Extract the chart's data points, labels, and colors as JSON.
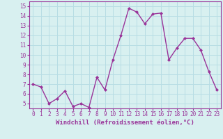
{
  "x": [
    0,
    1,
    2,
    3,
    4,
    5,
    6,
    7,
    8,
    9,
    10,
    11,
    12,
    13,
    14,
    15,
    16,
    17,
    18,
    19,
    20,
    21,
    22,
    23
  ],
  "y": [
    7.0,
    6.7,
    5.0,
    5.5,
    6.3,
    4.7,
    5.0,
    4.6,
    7.7,
    6.4,
    9.5,
    12.0,
    14.8,
    14.4,
    13.2,
    14.2,
    14.3,
    9.5,
    10.7,
    11.7,
    11.7,
    10.5,
    8.3,
    6.4
  ],
  "line_color": "#993399",
  "marker": "D",
  "marker_size": 2.0,
  "xlabel": "Windchill (Refroidissement éolien,°C)",
  "xlabel_fontsize": 6.5,
  "ylim": [
    4.5,
    15.5
  ],
  "xlim": [
    -0.5,
    23.5
  ],
  "yticks": [
    5,
    6,
    7,
    8,
    9,
    10,
    11,
    12,
    13,
    14,
    15
  ],
  "xticks": [
    0,
    1,
    2,
    3,
    4,
    5,
    6,
    7,
    8,
    9,
    10,
    11,
    12,
    13,
    14,
    15,
    16,
    17,
    18,
    19,
    20,
    21,
    22,
    23
  ],
  "grid_color": "#b8dde4",
  "bg_color": "#d8f0f0",
  "tick_label_fontsize": 5.5,
  "line_width": 1.0,
  "spine_color": "#993399"
}
